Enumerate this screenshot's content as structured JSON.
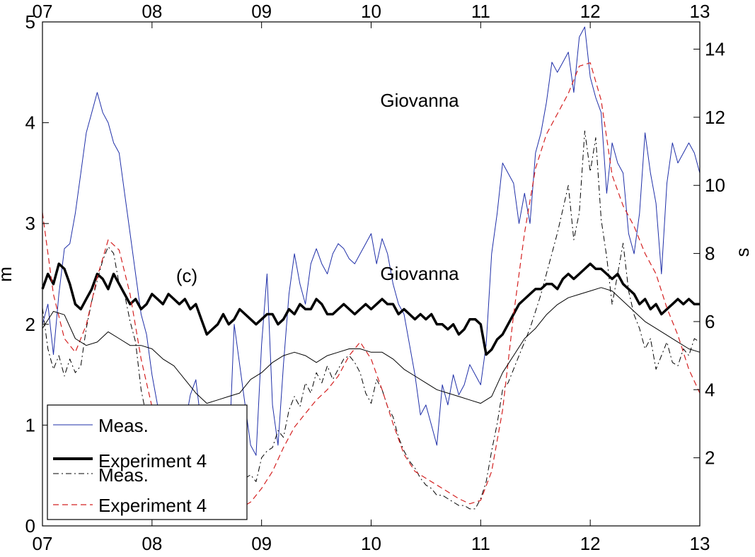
{
  "chart_data": {
    "type": "line",
    "annotations": {
      "top_label": "Giovanna",
      "mid_label": "Giovanna",
      "panel_label": "(c)"
    },
    "x_ticks": [
      "07",
      "08",
      "09",
      "10",
      "11",
      "12",
      "13"
    ],
    "x_top_ticks": [
      "07",
      "08",
      "09",
      "10",
      "11",
      "12",
      "13"
    ],
    "xlim": [
      7,
      13
    ],
    "left_axis": {
      "label": "m",
      "ylim": [
        0,
        5
      ],
      "ticks": [
        "0",
        "1",
        "2",
        "3",
        "4",
        "5"
      ]
    },
    "right_axis": {
      "label": "s",
      "ylim": [
        0,
        14.8
      ],
      "ticks": [
        "2",
        "4",
        "6",
        "8",
        "10",
        "12",
        "14"
      ]
    },
    "legend": {
      "placement": "bottom-left",
      "entries": [
        {
          "label": "Meas.",
          "style": "thin-blue"
        },
        {
          "label": "Experiment 4",
          "style": "thick-black"
        },
        {
          "label": "Meas.",
          "style": "dash-dot-black"
        },
        {
          "label": "Experiment 4",
          "style": "dashed-red"
        }
      ]
    },
    "colors": {
      "meas_hs": "#1f2fa8",
      "exp4_hs": "#000000",
      "meas_t": "#000000",
      "exp4_t": "#d42020",
      "thin_black": "#000000"
    },
    "series": [
      {
        "name": "Meas.",
        "axis": "left",
        "color": "#1f2fa8",
        "style": "thin",
        "x": [
          7.0,
          7.05,
          7.1,
          7.15,
          7.2,
          7.25,
          7.3,
          7.35,
          7.4,
          7.45,
          7.5,
          7.55,
          7.6,
          7.65,
          7.7,
          7.75,
          7.8,
          7.85,
          7.9,
          7.95,
          8.0,
          8.05,
          8.1,
          8.15,
          8.2,
          8.25,
          8.3,
          8.35,
          8.4,
          8.45,
          8.5,
          8.55,
          8.6,
          8.65,
          8.7,
          8.75,
          8.8,
          8.85,
          8.9,
          8.95,
          9.0,
          9.05,
          9.1,
          9.15,
          9.2,
          9.25,
          9.3,
          9.35,
          9.4,
          9.45,
          9.5,
          9.55,
          9.6,
          9.65,
          9.7,
          9.75,
          9.8,
          9.85,
          9.9,
          9.95,
          10.0,
          10.05,
          10.1,
          10.15,
          10.2,
          10.25,
          10.3,
          10.35,
          10.4,
          10.45,
          10.5,
          10.55,
          10.6,
          10.65,
          10.7,
          10.75,
          10.8,
          10.85,
          10.9,
          10.95,
          11.0,
          11.05,
          11.1,
          11.15,
          11.2,
          11.25,
          11.3,
          11.35,
          11.4,
          11.45,
          11.5,
          11.55,
          11.6,
          11.65,
          11.7,
          11.75,
          11.8,
          11.85,
          11.9,
          11.95,
          12.0,
          12.05,
          12.1,
          12.15,
          12.2,
          12.25,
          12.3,
          12.35,
          12.4,
          12.45,
          12.5,
          12.55,
          12.6,
          12.65,
          12.7,
          12.75,
          12.8,
          12.85,
          12.9,
          12.95,
          13.0
        ],
        "values": [
          2.0,
          2.2,
          1.7,
          2.3,
          2.75,
          2.8,
          3.1,
          3.5,
          3.9,
          4.1,
          4.3,
          4.1,
          4.0,
          3.8,
          3.7,
          3.3,
          2.9,
          2.5,
          2.1,
          1.9,
          1.5,
          1.2,
          1.0,
          0.9,
          0.8,
          0.8,
          1.0,
          1.3,
          1.45,
          1.0,
          0.9,
          0.7,
          0.65,
          0.6,
          0.65,
          2.0,
          1.6,
          1.2,
          0.8,
          0.7,
          1.8,
          2.5,
          1.2,
          0.8,
          1.6,
          2.3,
          2.7,
          2.4,
          2.2,
          2.6,
          2.75,
          2.6,
          2.5,
          2.7,
          2.8,
          2.75,
          2.65,
          2.6,
          2.7,
          2.8,
          2.9,
          2.6,
          2.85,
          2.7,
          2.4,
          2.2,
          2.1,
          1.8,
          1.5,
          1.1,
          1.2,
          1.0,
          0.8,
          1.4,
          1.2,
          1.5,
          1.3,
          1.4,
          1.6,
          1.5,
          1.4,
          1.8,
          2.7,
          3.1,
          3.6,
          3.5,
          3.4,
          3.0,
          3.3,
          3.0,
          3.7,
          3.9,
          4.2,
          4.6,
          4.5,
          4.6,
          4.7,
          4.3,
          4.85,
          4.95,
          4.45,
          4.25,
          4.1,
          3.3,
          3.8,
          3.6,
          3.5,
          2.9,
          2.7,
          3.1,
          3.9,
          3.5,
          3.2,
          2.5,
          3.4,
          3.8,
          3.6,
          3.7,
          3.8,
          3.7,
          3.5
        ]
      },
      {
        "name": "Experiment 4",
        "axis": "left",
        "color": "#000000",
        "style": "thick",
        "x": [
          7.0,
          7.05,
          7.1,
          7.15,
          7.2,
          7.25,
          7.3,
          7.35,
          7.4,
          7.45,
          7.5,
          7.55,
          7.6,
          7.65,
          7.7,
          7.75,
          7.8,
          7.85,
          7.9,
          7.95,
          8.0,
          8.05,
          8.1,
          8.15,
          8.2,
          8.25,
          8.3,
          8.35,
          8.4,
          8.45,
          8.5,
          8.55,
          8.6,
          8.65,
          8.7,
          8.75,
          8.8,
          8.85,
          8.9,
          8.95,
          9.0,
          9.05,
          9.1,
          9.15,
          9.2,
          9.25,
          9.3,
          9.35,
          9.4,
          9.45,
          9.5,
          9.55,
          9.6,
          9.65,
          9.7,
          9.75,
          9.8,
          9.85,
          9.9,
          9.95,
          10.0,
          10.05,
          10.1,
          10.15,
          10.2,
          10.25,
          10.3,
          10.35,
          10.4,
          10.45,
          10.5,
          10.55,
          10.6,
          10.65,
          10.7,
          10.75,
          10.8,
          10.85,
          10.9,
          10.95,
          11.0,
          11.05,
          11.1,
          11.15,
          11.2,
          11.25,
          11.3,
          11.35,
          11.4,
          11.45,
          11.5,
          11.55,
          11.6,
          11.65,
          11.7,
          11.75,
          11.8,
          11.85,
          11.9,
          11.95,
          12.0,
          12.05,
          12.1,
          12.15,
          12.2,
          12.25,
          12.3,
          12.35,
          12.4,
          12.45,
          12.5,
          12.55,
          12.6,
          12.65,
          12.7,
          12.75,
          12.8,
          12.85,
          12.9,
          12.95,
          13.0
        ],
        "values": [
          2.35,
          2.5,
          2.4,
          2.6,
          2.55,
          2.4,
          2.2,
          2.15,
          2.25,
          2.35,
          2.5,
          2.45,
          2.35,
          2.5,
          2.4,
          2.3,
          2.2,
          2.25,
          2.15,
          2.2,
          2.3,
          2.25,
          2.2,
          2.3,
          2.25,
          2.2,
          2.25,
          2.15,
          2.2,
          2.05,
          1.9,
          1.95,
          2.0,
          2.1,
          2.0,
          2.05,
          2.15,
          2.1,
          2.05,
          2.0,
          2.05,
          2.1,
          2.1,
          2.0,
          2.05,
          2.15,
          2.1,
          2.2,
          2.15,
          2.15,
          2.25,
          2.2,
          2.1,
          2.1,
          2.15,
          2.2,
          2.15,
          2.1,
          2.15,
          2.2,
          2.15,
          2.2,
          2.25,
          2.2,
          2.2,
          2.1,
          2.15,
          2.1,
          2.05,
          2.1,
          2.05,
          2.1,
          2.0,
          2.0,
          1.95,
          2.0,
          1.9,
          1.95,
          2.05,
          2.05,
          2.0,
          1.7,
          1.75,
          1.85,
          1.9,
          2.0,
          2.1,
          2.2,
          2.25,
          2.3,
          2.35,
          2.35,
          2.4,
          2.4,
          2.35,
          2.45,
          2.5,
          2.45,
          2.5,
          2.55,
          2.6,
          2.55,
          2.55,
          2.5,
          2.45,
          2.5,
          2.4,
          2.35,
          2.3,
          2.2,
          2.25,
          2.15,
          2.2,
          2.1,
          2.15,
          2.2,
          2.25,
          2.2,
          2.25,
          2.2,
          2.2
        ]
      },
      {
        "name": "Meas.",
        "axis": "right",
        "color": "#000000",
        "style": "dash-dot",
        "x": [
          7.0,
          7.05,
          7.1,
          7.15,
          7.2,
          7.25,
          7.3,
          7.35,
          7.4,
          7.45,
          7.5,
          7.55,
          7.6,
          7.65,
          7.7,
          7.75,
          7.8,
          7.85,
          7.9,
          7.95,
          8.0,
          8.05,
          8.1,
          8.15,
          8.2,
          8.25,
          8.3,
          8.35,
          8.4,
          8.45,
          8.5,
          8.55,
          8.6,
          8.65,
          8.7,
          8.75,
          8.8,
          8.85,
          8.9,
          8.95,
          9.0,
          9.05,
          9.1,
          9.15,
          9.2,
          9.25,
          9.3,
          9.35,
          9.4,
          9.45,
          9.5,
          9.55,
          9.6,
          9.65,
          9.7,
          9.75,
          9.8,
          9.85,
          9.9,
          9.95,
          10.0,
          10.05,
          10.1,
          10.15,
          10.2,
          10.25,
          10.3,
          10.35,
          10.4,
          10.45,
          10.5,
          10.55,
          10.6,
          10.65,
          10.7,
          10.75,
          10.8,
          10.85,
          10.9,
          10.95,
          11.0,
          11.05,
          11.1,
          11.15,
          11.2,
          11.25,
          11.3,
          11.35,
          11.4,
          11.45,
          11.5,
          11.55,
          11.6,
          11.65,
          11.7,
          11.75,
          11.8,
          11.85,
          11.9,
          11.95,
          12.0,
          12.05,
          12.1,
          12.15,
          12.2,
          12.25,
          12.3,
          12.35,
          12.4,
          12.45,
          12.5,
          12.55,
          12.6,
          12.65,
          12.7,
          12.75,
          12.8,
          12.85,
          12.9,
          12.95,
          13.0
        ],
        "values": [
          6.4,
          5.2,
          4.6,
          5.0,
          4.4,
          4.9,
          4.5,
          4.7,
          5.8,
          6.6,
          7.2,
          7.8,
          8.2,
          8.0,
          7.1,
          6.8,
          6.0,
          5.4,
          4.0,
          3.2,
          2.8,
          2.5,
          3.0,
          2.4,
          2.0,
          1.8,
          1.6,
          2.1,
          1.7,
          1.5,
          1.3,
          1.7,
          1.4,
          1.2,
          1.0,
          1.3,
          1.6,
          1.4,
          1.5,
          1.3,
          2.0,
          2.2,
          2.3,
          2.8,
          2.6,
          3.4,
          3.8,
          3.5,
          4.2,
          3.9,
          4.5,
          4.2,
          4.7,
          4.3,
          4.6,
          4.9,
          5.0,
          4.8,
          4.5,
          3.9,
          3.6,
          4.3,
          4.0,
          3.5,
          3.2,
          2.6,
          2.2,
          1.9,
          1.7,
          1.4,
          1.2,
          1.1,
          0.9,
          0.9,
          0.8,
          0.7,
          0.6,
          0.6,
          0.5,
          0.5,
          0.8,
          1.3,
          2.2,
          3.0,
          4.0,
          4.2,
          4.6,
          5.0,
          5.4,
          5.8,
          6.3,
          6.8,
          7.4,
          8.0,
          8.6,
          9.3,
          10.0,
          8.4,
          9.2,
          11.6,
          10.4,
          11.4,
          9.0,
          7.9,
          6.5,
          7.4,
          8.3,
          6.9,
          6.2,
          5.8,
          5.2,
          5.5,
          4.6,
          5.0,
          5.4,
          4.8,
          4.7,
          5.2,
          5.0,
          5.5,
          5.4
        ]
      },
      {
        "name": "Experiment 4",
        "axis": "right",
        "color": "#d42020",
        "style": "dashed",
        "x": [
          7.0,
          7.1,
          7.2,
          7.3,
          7.4,
          7.5,
          7.6,
          7.7,
          7.8,
          7.9,
          8.0,
          8.1,
          8.2,
          8.3,
          8.4,
          8.5,
          8.6,
          8.7,
          8.8,
          8.9,
          9.0,
          9.1,
          9.2,
          9.3,
          9.4,
          9.5,
          9.6,
          9.7,
          9.8,
          9.9,
          10.0,
          10.1,
          10.2,
          10.3,
          10.4,
          10.5,
          10.6,
          10.7,
          10.8,
          10.9,
          11.0,
          11.1,
          11.2,
          11.3,
          11.4,
          11.5,
          11.6,
          11.7,
          11.8,
          11.9,
          12.0,
          12.1,
          12.2,
          12.3,
          12.4,
          12.5,
          12.6,
          12.7,
          12.8,
          12.9,
          13.0
        ],
        "values": [
          9.2,
          6.8,
          5.5,
          5.1,
          5.9,
          7.3,
          8.4,
          8.1,
          6.8,
          4.9,
          3.5,
          2.6,
          2.0,
          1.5,
          1.1,
          0.85,
          0.7,
          0.6,
          0.5,
          0.7,
          1.1,
          1.6,
          2.3,
          2.9,
          3.3,
          3.7,
          4.0,
          4.4,
          5.0,
          5.4,
          4.9,
          4.0,
          3.0,
          2.1,
          1.6,
          1.4,
          1.2,
          1.0,
          0.8,
          0.65,
          0.75,
          1.6,
          3.4,
          6.2,
          8.6,
          10.5,
          11.5,
          12.1,
          12.7,
          13.5,
          13.6,
          12.5,
          10.3,
          9.4,
          8.8,
          8.0,
          7.4,
          6.4,
          5.6,
          4.6,
          3.9
        ]
      },
      {
        "name": "",
        "axis": "right",
        "color": "#000000",
        "style": "thin",
        "x": [
          7.0,
          7.1,
          7.2,
          7.3,
          7.4,
          7.5,
          7.6,
          7.7,
          7.8,
          7.9,
          8.0,
          8.1,
          8.2,
          8.3,
          8.4,
          8.5,
          8.6,
          8.7,
          8.8,
          8.9,
          9.0,
          9.1,
          9.2,
          9.3,
          9.4,
          9.5,
          9.6,
          9.7,
          9.8,
          9.9,
          10.0,
          10.1,
          10.2,
          10.3,
          10.4,
          10.5,
          10.6,
          10.7,
          10.8,
          10.9,
          11.0,
          11.1,
          11.2,
          11.3,
          11.4,
          11.5,
          11.6,
          11.7,
          11.8,
          11.9,
          12.0,
          12.1,
          12.2,
          12.3,
          12.4,
          12.5,
          12.6,
          12.7,
          12.8,
          12.9,
          13.0
        ],
        "values": [
          5.8,
          6.3,
          6.2,
          5.5,
          5.3,
          5.4,
          5.7,
          5.5,
          5.3,
          5.3,
          5.2,
          4.9,
          4.7,
          4.3,
          3.9,
          3.6,
          3.7,
          3.8,
          3.9,
          4.3,
          4.5,
          4.8,
          5.0,
          5.1,
          5.0,
          4.8,
          5.0,
          5.1,
          5.2,
          5.2,
          5.1,
          5.1,
          4.9,
          4.6,
          4.4,
          4.2,
          4.0,
          3.9,
          3.8,
          3.7,
          3.6,
          3.8,
          4.5,
          5.0,
          5.5,
          5.8,
          6.2,
          6.5,
          6.7,
          6.8,
          6.9,
          7.0,
          6.9,
          6.6,
          6.3,
          6.0,
          5.8,
          5.6,
          5.4,
          5.2,
          5.1
        ]
      }
    ]
  }
}
